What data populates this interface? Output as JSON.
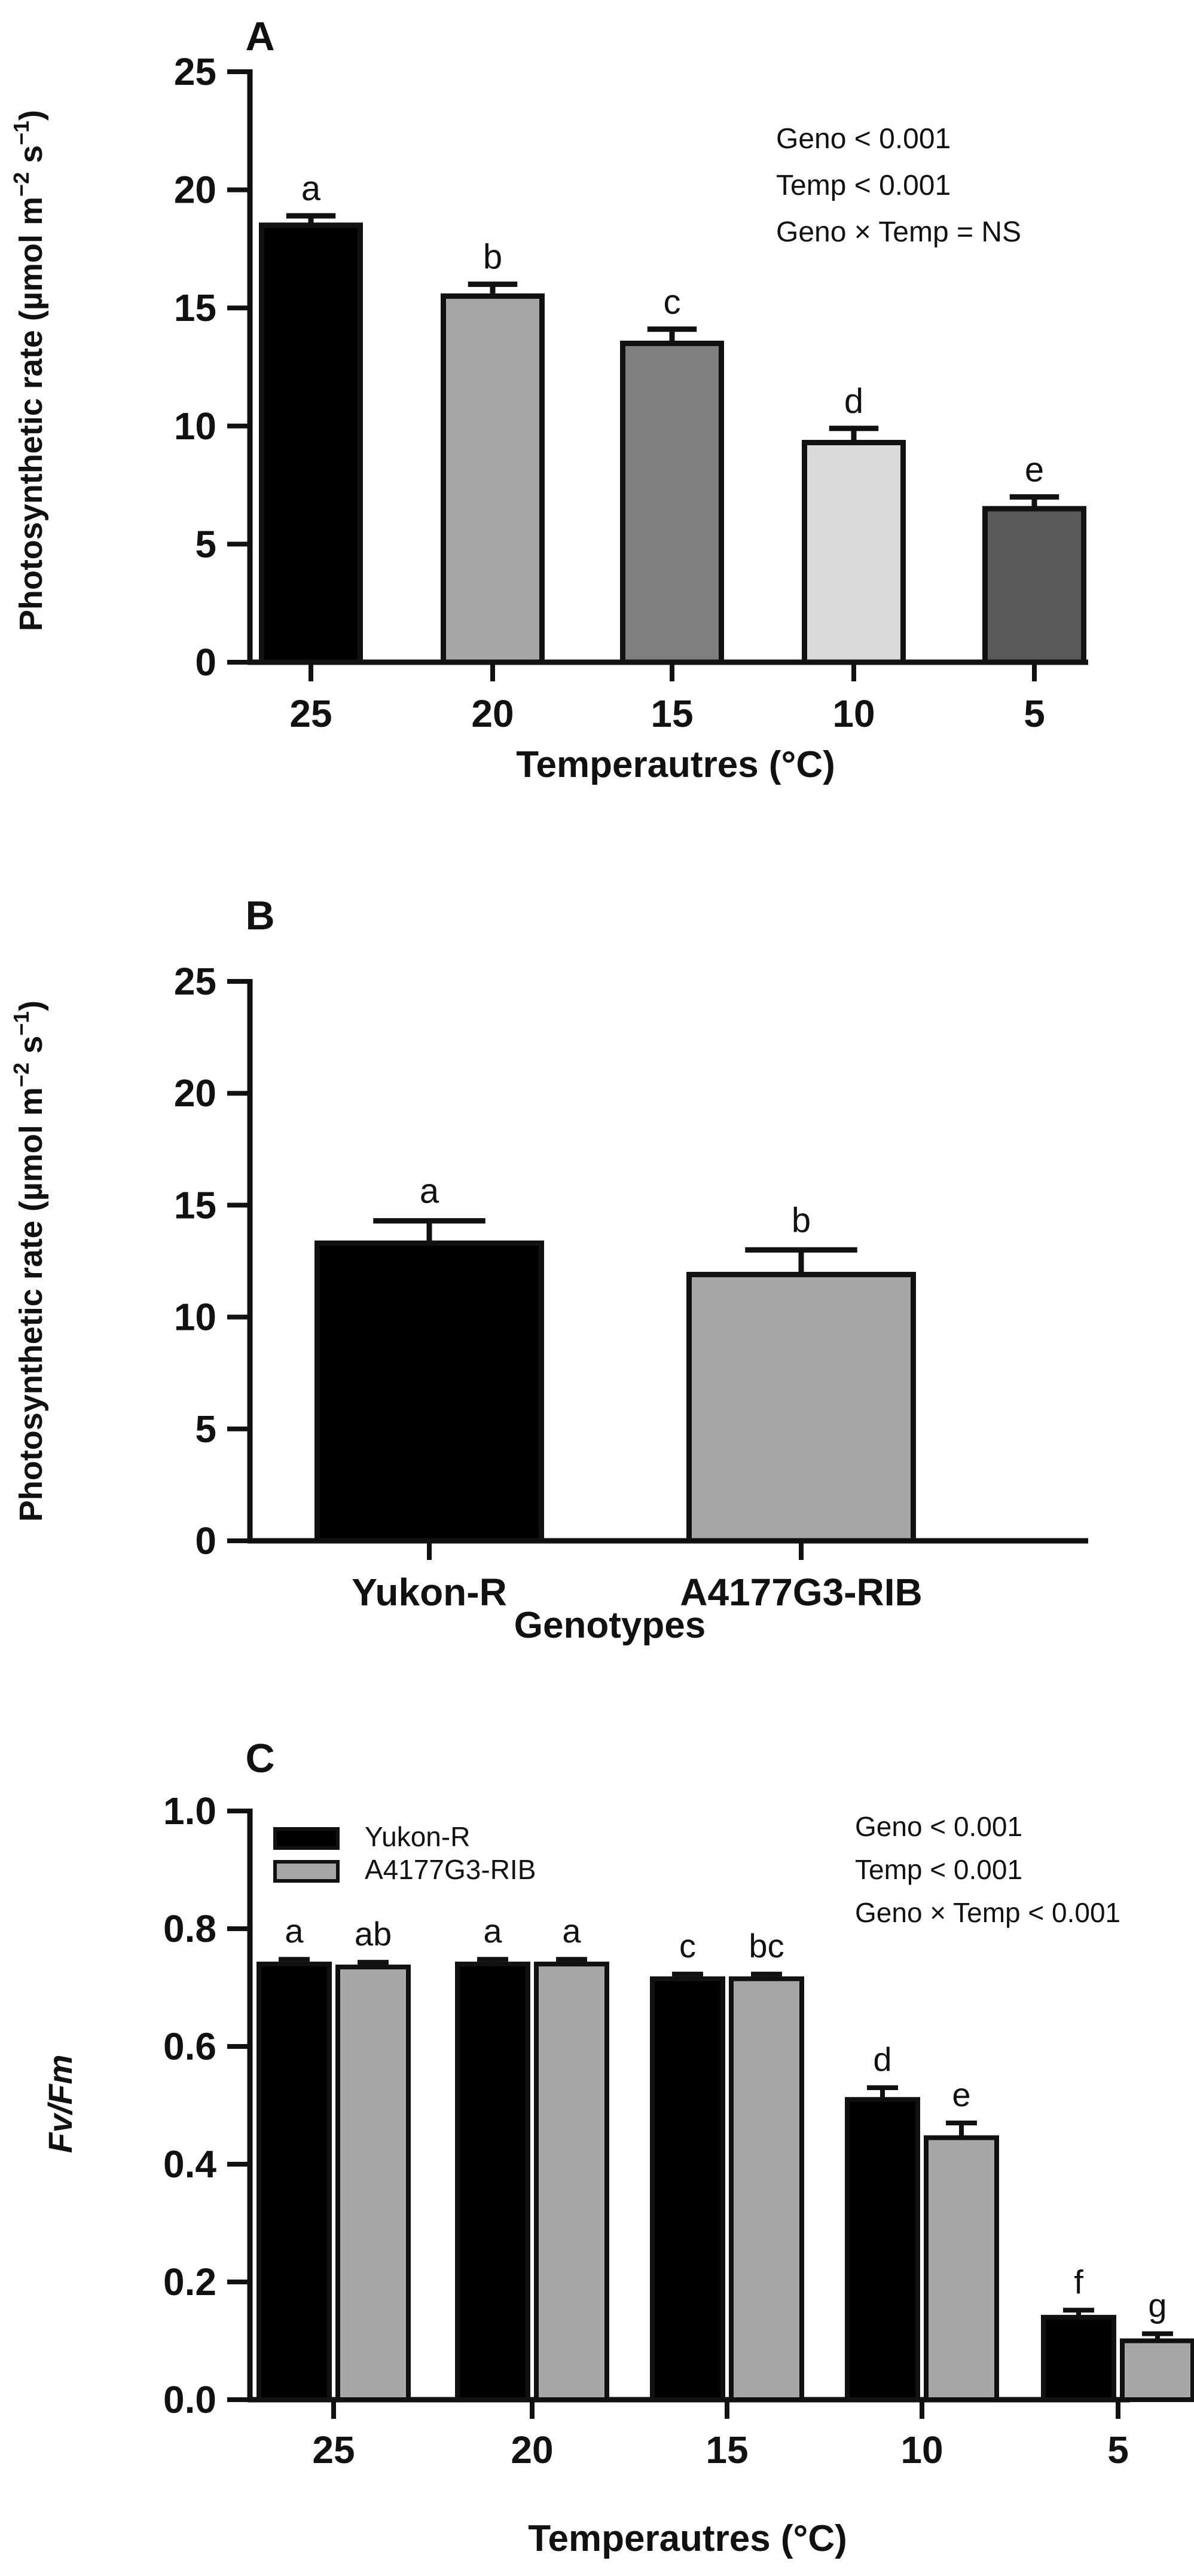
{
  "chart_data": [
    {
      "panel": "A",
      "type": "bar",
      "categories": [
        "25",
        "20",
        "15",
        "10",
        "5"
      ],
      "values": [
        18.5,
        15.5,
        13.5,
        9.3,
        6.5
      ],
      "errors": [
        0.4,
        0.5,
        0.6,
        0.6,
        0.5
      ],
      "letters": [
        "a",
        "b",
        "c",
        "d",
        "e"
      ],
      "colors": [
        "#000000",
        "#a6a6a6",
        "#7f7f7f",
        "#d9d9d9",
        "#595959"
      ],
      "xlabel": "Temperautres (°C)",
      "ylabel_main": "Photosynthetic rate (µmol m",
      "ylabel_exp1": "−2",
      "ylabel_mid": " s",
      "ylabel_exp2": "−1",
      "ylabel_end": ")",
      "ylim": [
        0,
        25
      ],
      "yticks": [
        0,
        5,
        10,
        15,
        20,
        25
      ],
      "annotations": [
        "Geno < 0.001",
        "Temp < 0.001",
        "Geno × Temp = NS"
      ]
    },
    {
      "panel": "B",
      "type": "bar",
      "categories": [
        "Yukon-R",
        "A4177G3-RIB"
      ],
      "values": [
        13.3,
        11.9
      ],
      "errors": [
        1.0,
        1.1
      ],
      "letters": [
        "a",
        "b"
      ],
      "colors": [
        "#000000",
        "#a6a6a6"
      ],
      "xlabel": "Genotypes",
      "ylabel_main": "Photosynthetic rate (µmol m",
      "ylabel_exp1": "−2",
      "ylabel_mid": " s",
      "ylabel_exp2": "−1",
      "ylabel_end": ")",
      "ylim": [
        0,
        25
      ],
      "yticks": [
        0,
        5,
        10,
        15,
        20,
        25
      ]
    },
    {
      "panel": "C",
      "type": "bar",
      "categories": [
        "25",
        "20",
        "15",
        "10",
        "5"
      ],
      "series": [
        {
          "name": "Yukon-R",
          "values": [
            0.74,
            0.74,
            0.715,
            0.51,
            0.14
          ],
          "errors": [
            0.008,
            0.008,
            0.008,
            0.02,
            0.012
          ],
          "letters": [
            "a",
            "a",
            "c",
            "d",
            "f"
          ],
          "color": "#000000"
        },
        {
          "name": "A4177G3-RIB",
          "values": [
            0.735,
            0.74,
            0.715,
            0.445,
            0.1
          ],
          "errors": [
            0.008,
            0.008,
            0.008,
            0.025,
            0.012
          ],
          "letters": [
            "ab",
            "a",
            "bc",
            "e",
            "g"
          ],
          "color": "#a6a6a6"
        }
      ],
      "xlabel": "Temperautres (°C)",
      "ylabel_italic": "Fv/Fm",
      "ylim": [
        0,
        1.0
      ],
      "yticks": [
        "0.0",
        "0.2",
        "0.4",
        "0.6",
        "0.8",
        "1.0"
      ],
      "legend_position": "top-left",
      "annotations": [
        "Geno < 0.001",
        "Temp < 0.001",
        "Geno × Temp < 0.001"
      ]
    }
  ]
}
